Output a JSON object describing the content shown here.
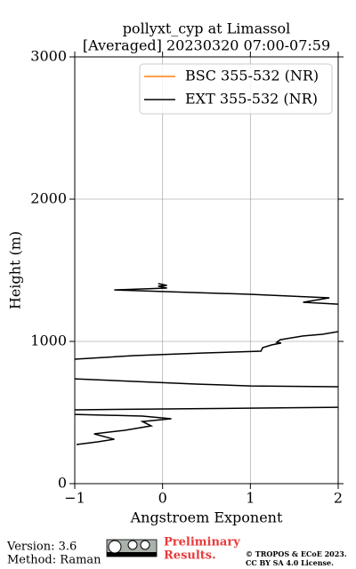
{
  "chart_data": {
    "type": "line",
    "title": "pollyxt_cyp at Limassol",
    "subtitle": "[Averaged] 20230320 07:00-07:59",
    "x_label": "Angstroem Exponent",
    "y_label": "Height (m)",
    "xlim": [
      -1,
      2
    ],
    "xticks": [
      {
        "value": -1,
        "label": "−1"
      },
      0,
      1,
      2
    ],
    "ylim": [
      0,
      3000
    ],
    "yticks": [
      0,
      1000,
      2000,
      3000
    ],
    "grid": true,
    "legend": "upper right",
    "y": [
      1406,
      1394,
      1388,
      1375,
      1362,
      1331,
      1306,
      1275,
      1262,
      1150,
      1069,
      1050,
      1038,
      1012,
      994,
      988,
      975,
      956,
      931,
      919,
      900,
      875,
      800,
      737,
      700,
      687,
      681,
      600,
      537,
      531,
      519,
      500,
      487,
      475,
      456,
      437,
      406,
      375,
      350,
      312,
      294,
      275
    ],
    "series": [
      {
        "name": "BSC 355-532 (NR)",
        "color": "#ff7f0e",
        "values": [
          null,
          null,
          null,
          null,
          null,
          null,
          null,
          null,
          null,
          null,
          null,
          null,
          null,
          null,
          null,
          null,
          null,
          null,
          null,
          null,
          null,
          null,
          null,
          null,
          null,
          null,
          null,
          null,
          null,
          null,
          null,
          null,
          null,
          null,
          null,
          null,
          null,
          null,
          null,
          null,
          null,
          null
        ]
      },
      {
        "name": "EXT 355-532 (NR)",
        "color": "#000000",
        "values": [
          -0.05,
          0.05,
          -0.05,
          0.05,
          -0.55,
          0.99,
          1.9,
          1.6,
          2.0,
          null,
          2.0,
          1.82,
          1.6,
          1.34,
          1.3,
          1.35,
          1.24,
          1.14,
          1.12,
          0.48,
          -0.33,
          -1.0,
          null,
          -1.0,
          0.38,
          1.0,
          2.0,
          null,
          2.0,
          1.09,
          -1.0,
          null,
          -1.0,
          -0.23,
          0.1,
          -0.23,
          -0.13,
          -0.43,
          -0.78,
          -0.55,
          -0.74,
          -0.98
        ]
      }
    ]
  },
  "footer": {
    "version": "Version: 3.6",
    "method": "Method: Raman",
    "preliminary": [
      "Preliminary",
      "Results."
    ],
    "copyright": [
      "© TROPOS & ECoE 2023.",
      "CC BY SA 4.0 License."
    ]
  }
}
